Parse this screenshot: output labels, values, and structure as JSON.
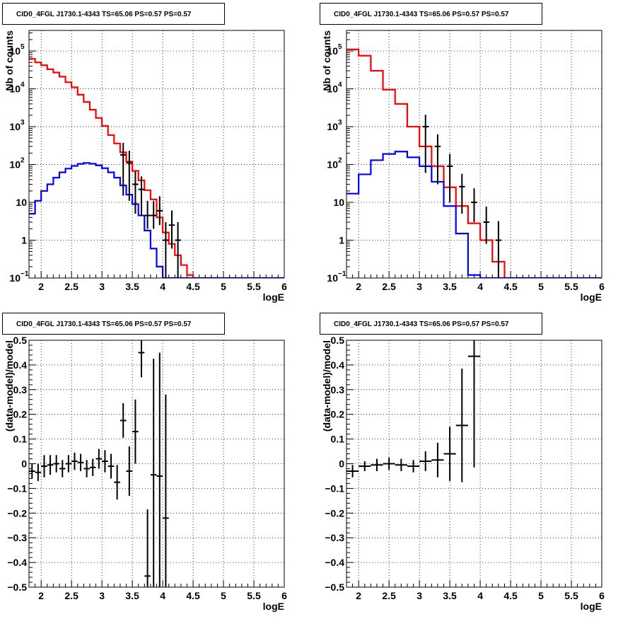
{
  "chart_data": [
    {
      "type": "histogram",
      "title": "CID0_4FGL J1730.1-4343 TS=65.06 PS=0.57 PS=0.57",
      "xlabel": "logE",
      "ylabel": "Nb of counts",
      "log_y": true,
      "xlim": [
        1.8,
        6.0
      ],
      "ylim": [
        0.1,
        350000
      ],
      "grid": true,
      "x_ticks": [
        "2",
        "2.5",
        "3",
        "3.5",
        "4",
        "4.5",
        "5",
        "5.5",
        "6"
      ],
      "y_ticks": [
        {
          "value": 0.1,
          "label": "10",
          "exp": "−1"
        },
        {
          "value": 1,
          "label": "1",
          "exp": ""
        },
        {
          "value": 10,
          "label": "10",
          "exp": ""
        },
        {
          "value": 100,
          "label": "10",
          "exp": "2"
        },
        {
          "value": 1000,
          "label": "10",
          "exp": "3"
        },
        {
          "value": 10000,
          "label": "10",
          "exp": "4"
        },
        {
          "value": 100000,
          "label": "10",
          "exp": "5"
        }
      ],
      "bin_edges": [
        1.8,
        1.9,
        2.0,
        2.1,
        2.2,
        2.3,
        2.4,
        2.5,
        2.6,
        2.7,
        2.8,
        2.9,
        3.0,
        3.1,
        3.2,
        3.3,
        3.4,
        3.5,
        3.6,
        3.7,
        3.8,
        3.9,
        4.0,
        4.1,
        4.2,
        4.3,
        4.4,
        4.5,
        4.6,
        4.7,
        4.8,
        4.9,
        5.0,
        5.1,
        5.2,
        5.3,
        5.4,
        5.5,
        5.6,
        5.7,
        5.8,
        5.9,
        6.0
      ],
      "series": [
        {
          "name": "",
          "style": "step",
          "color": "#ff0000",
          "values": [
            62000,
            50000,
            42000,
            33000,
            27000,
            21000,
            15000,
            11000,
            7000,
            4500,
            2800,
            1700,
            1050,
            600,
            360,
            210,
            120,
            68,
            38,
            21,
            12,
            4,
            1.6,
            0.8,
            0.4,
            0.22,
            0.12,
            0.06,
            0.05,
            0.05,
            0.05,
            0.05,
            0.05,
            0.05,
            0.05,
            0.05,
            0.05,
            0.05,
            0.05,
            0.05,
            0.05,
            0.05
          ]
        },
        {
          "name": "",
          "style": "step",
          "color": "#0000ff",
          "values": [
            5,
            11,
            20,
            30,
            45,
            62,
            78,
            92,
            104,
            110,
            105,
            95,
            80,
            62,
            45,
            28,
            16,
            9,
            4.5,
            1.8,
            0.6,
            0.2,
            0.1,
            0.05,
            0.05,
            0.05,
            0.05,
            0.05,
            0.05,
            0.05,
            0.05,
            0.05,
            0.05,
            0.05,
            0.05,
            0.05,
            0.05,
            0.05,
            0.05,
            0.05,
            0.05,
            0.05
          ]
        },
        {
          "name": "",
          "style": "errorbar",
          "color": "#000000",
          "x": [
            3.35,
            3.45,
            3.55,
            3.65,
            3.75,
            3.85,
            3.95,
            4.05,
            4.15,
            4.25
          ],
          "y": [
            180,
            110,
            30,
            22,
            4.5,
            4.5,
            6,
            1,
            2.5,
            1
          ],
          "yerr_low": [
            165,
            99,
            25,
            17.5,
            2.5,
            2.5,
            3.5,
            0.9,
            1.9,
            0.9
          ],
          "yerr_high": [
            195,
            121,
            35,
            26.5,
            6.5,
            6.5,
            8.5,
            2.0,
            3.6,
            2.0
          ]
        }
      ]
    },
    {
      "type": "histogram",
      "title": "CID0_4FGL J1730.1-4343 TS=65.06 PS=0.57 PS=0.57",
      "xlabel": "logE",
      "ylabel": "Nb of counts",
      "log_y": true,
      "xlim": [
        1.8,
        6.0
      ],
      "ylim": [
        0.1,
        350000
      ],
      "grid": true,
      "x_ticks": [
        "2",
        "2.5",
        "3",
        "3.5",
        "4",
        "4.5",
        "5",
        "5.5",
        "6"
      ],
      "y_ticks": [
        {
          "value": 0.1,
          "label": "10",
          "exp": "−1"
        },
        {
          "value": 1,
          "label": "1",
          "exp": ""
        },
        {
          "value": 10,
          "label": "10",
          "exp": ""
        },
        {
          "value": 100,
          "label": "10",
          "exp": "2"
        },
        {
          "value": 1000,
          "label": "10",
          "exp": "3"
        },
        {
          "value": 10000,
          "label": "10",
          "exp": "4"
        },
        {
          "value": 100000,
          "label": "10",
          "exp": "5"
        }
      ],
      "bin_edges": [
        1.8,
        2.0,
        2.2,
        2.4,
        2.6,
        2.8,
        3.0,
        3.2,
        3.4,
        3.6,
        3.8,
        4.0,
        4.2,
        4.4,
        4.6,
        4.8,
        5.0,
        5.2,
        5.4,
        5.6,
        5.8,
        6.0
      ],
      "series": [
        {
          "name": "",
          "style": "step",
          "color": "#ff0000",
          "values": [
            110000,
            75000,
            30000,
            9500,
            4000,
            1000,
            300,
            90,
            25,
            8,
            2.8,
            1,
            0.27,
            0.1,
            0.05,
            0.05,
            0.05,
            0.05,
            0.05,
            0.05,
            0.05
          ]
        },
        {
          "name": "",
          "style": "step",
          "color": "#0000ff",
          "values": [
            17,
            55,
            130,
            190,
            220,
            155,
            90,
            35,
            8,
            1.5,
            0.12,
            0.05,
            0.05,
            0.05,
            0.05,
            0.05,
            0.05,
            0.05,
            0.05,
            0.05,
            0.05
          ]
        },
        {
          "name": "",
          "style": "errorbar",
          "color": "#000000",
          "x": [
            3.1,
            3.3,
            3.5,
            3.7,
            3.9,
            4.1,
            4.3
          ],
          "y": [
            1000,
            300,
            90,
            26,
            10,
            3,
            1
          ],
          "yerr_low": [
            940,
            270,
            80,
            21,
            7,
            2.2,
            0.9
          ],
          "yerr_high": [
            1060,
            330,
            100,
            31,
            13.5,
            4.7,
            2.2
          ]
        }
      ]
    },
    {
      "type": "scatter",
      "title": "CID0_4FGL J1730.1-4343 TS=65.06 PS=0.57 PS=0.57",
      "xlabel": "logE",
      "ylabel": "(data-model)/model",
      "log_y": false,
      "xlim": [
        1.8,
        6.0
      ],
      "ylim": [
        -0.5,
        0.5
      ],
      "grid": true,
      "x_ticks": [
        "2",
        "2.5",
        "3",
        "3.5",
        "4",
        "4.5",
        "5",
        "5.5",
        "6"
      ],
      "y_ticks": [
        {
          "value": -0.5,
          "label": "−0.5"
        },
        {
          "value": -0.4,
          "label": "−0.4"
        },
        {
          "value": -0.3,
          "label": "−0.3"
        },
        {
          "value": -0.2,
          "label": "−0.2"
        },
        {
          "value": -0.1,
          "label": "−0.1"
        },
        {
          "value": 0,
          "label": "0"
        },
        {
          "value": 0.1,
          "label": "0.1"
        },
        {
          "value": 0.2,
          "label": "0.2"
        },
        {
          "value": 0.3,
          "label": "0.3"
        },
        {
          "value": 0.4,
          "label": "0.4"
        },
        {
          "value": 0.5,
          "label": "0.5"
        }
      ],
      "series": [
        {
          "name": "",
          "style": "errorbar",
          "color": "#000000",
          "xerr": 0.05,
          "x": [
            1.85,
            1.95,
            2.05,
            2.15,
            2.25,
            2.35,
            2.45,
            2.55,
            2.65,
            2.75,
            2.85,
            2.95,
            3.05,
            3.15,
            3.25,
            3.35,
            3.45,
            3.55,
            3.65,
            3.75,
            3.85,
            3.95,
            4.05
          ],
          "y": [
            -0.03,
            -0.035,
            -0.01,
            -0.005,
            0.0,
            -0.02,
            0.0,
            0.01,
            0.005,
            -0.02,
            -0.015,
            0.02,
            0.01,
            -0.01,
            -0.075,
            0.175,
            -0.03,
            0.13,
            0.45,
            -0.455,
            -0.045,
            -0.05,
            -0.22
          ],
          "yerr": [
            0.03,
            0.035,
            0.045,
            0.04,
            0.035,
            0.035,
            0.035,
            0.035,
            0.035,
            0.035,
            0.035,
            0.04,
            0.045,
            0.05,
            0.07,
            0.07,
            0.1,
            0.13,
            0.1,
            0.27,
            0.47,
            0.5,
            0.5
          ]
        }
      ]
    },
    {
      "type": "scatter",
      "title": "CID0_4FGL J1730.1-4343 TS=65.06 PS=0.57 PS=0.57",
      "xlabel": "logE",
      "ylabel": "(data-model)/model",
      "log_y": false,
      "xlim": [
        1.8,
        6.0
      ],
      "ylim": [
        -0.5,
        0.5
      ],
      "grid": true,
      "x_ticks": [
        "2",
        "2.5",
        "3",
        "3.5",
        "4",
        "4.5",
        "5",
        "5.5",
        "6"
      ],
      "y_ticks": [
        {
          "value": -0.5,
          "label": "−0.5"
        },
        {
          "value": -0.4,
          "label": "−0.4"
        },
        {
          "value": -0.3,
          "label": "−0.3"
        },
        {
          "value": -0.2,
          "label": "−0.2"
        },
        {
          "value": -0.1,
          "label": "−0.1"
        },
        {
          "value": 0,
          "label": "0"
        },
        {
          "value": 0.1,
          "label": "0.1"
        },
        {
          "value": 0.2,
          "label": "0.2"
        },
        {
          "value": 0.3,
          "label": "0.3"
        },
        {
          "value": 0.4,
          "label": "0.4"
        },
        {
          "value": 0.5,
          "label": "0.5"
        }
      ],
      "series": [
        {
          "name": "",
          "style": "errorbar",
          "color": "#000000",
          "xerr": 0.1,
          "x": [
            1.9,
            2.1,
            2.3,
            2.5,
            2.7,
            2.9,
            3.1,
            3.3,
            3.5,
            3.7,
            3.9
          ],
          "y": [
            -0.03,
            -0.01,
            -0.005,
            0.0,
            -0.005,
            -0.01,
            0.01,
            0.015,
            0.04,
            0.155,
            0.435
          ],
          "yerr": [
            0.025,
            0.02,
            0.025,
            0.025,
            0.025,
            0.025,
            0.04,
            0.07,
            0.11,
            0.23,
            0.45
          ]
        }
      ]
    }
  ]
}
